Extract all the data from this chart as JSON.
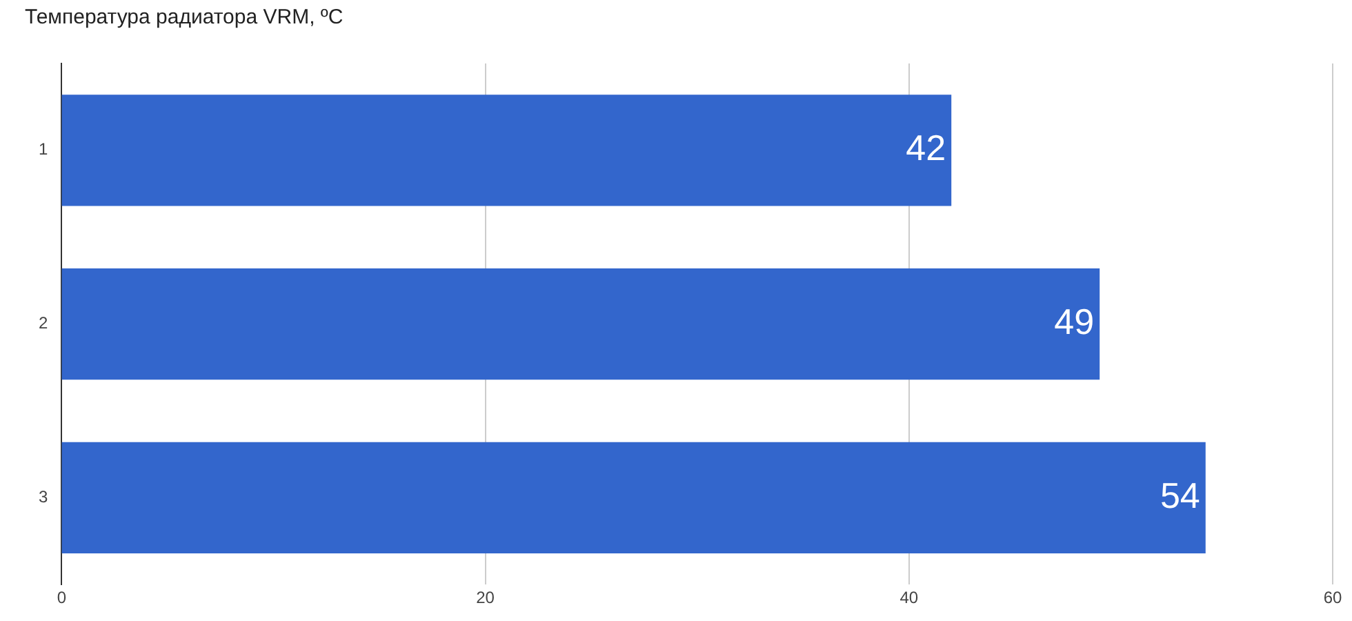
{
  "chart_data": {
    "type": "bar",
    "title": "Температура радиатора VRM, ºC",
    "orientation": "horizontal",
    "categories": [
      "1",
      "2",
      "3"
    ],
    "values": [
      42,
      49,
      54
    ],
    "color": "#3366cc",
    "xlim": [
      0,
      60
    ],
    "xticks": [
      0,
      20,
      40,
      60
    ],
    "grid": "x",
    "data_labels": true,
    "legend": false
  }
}
